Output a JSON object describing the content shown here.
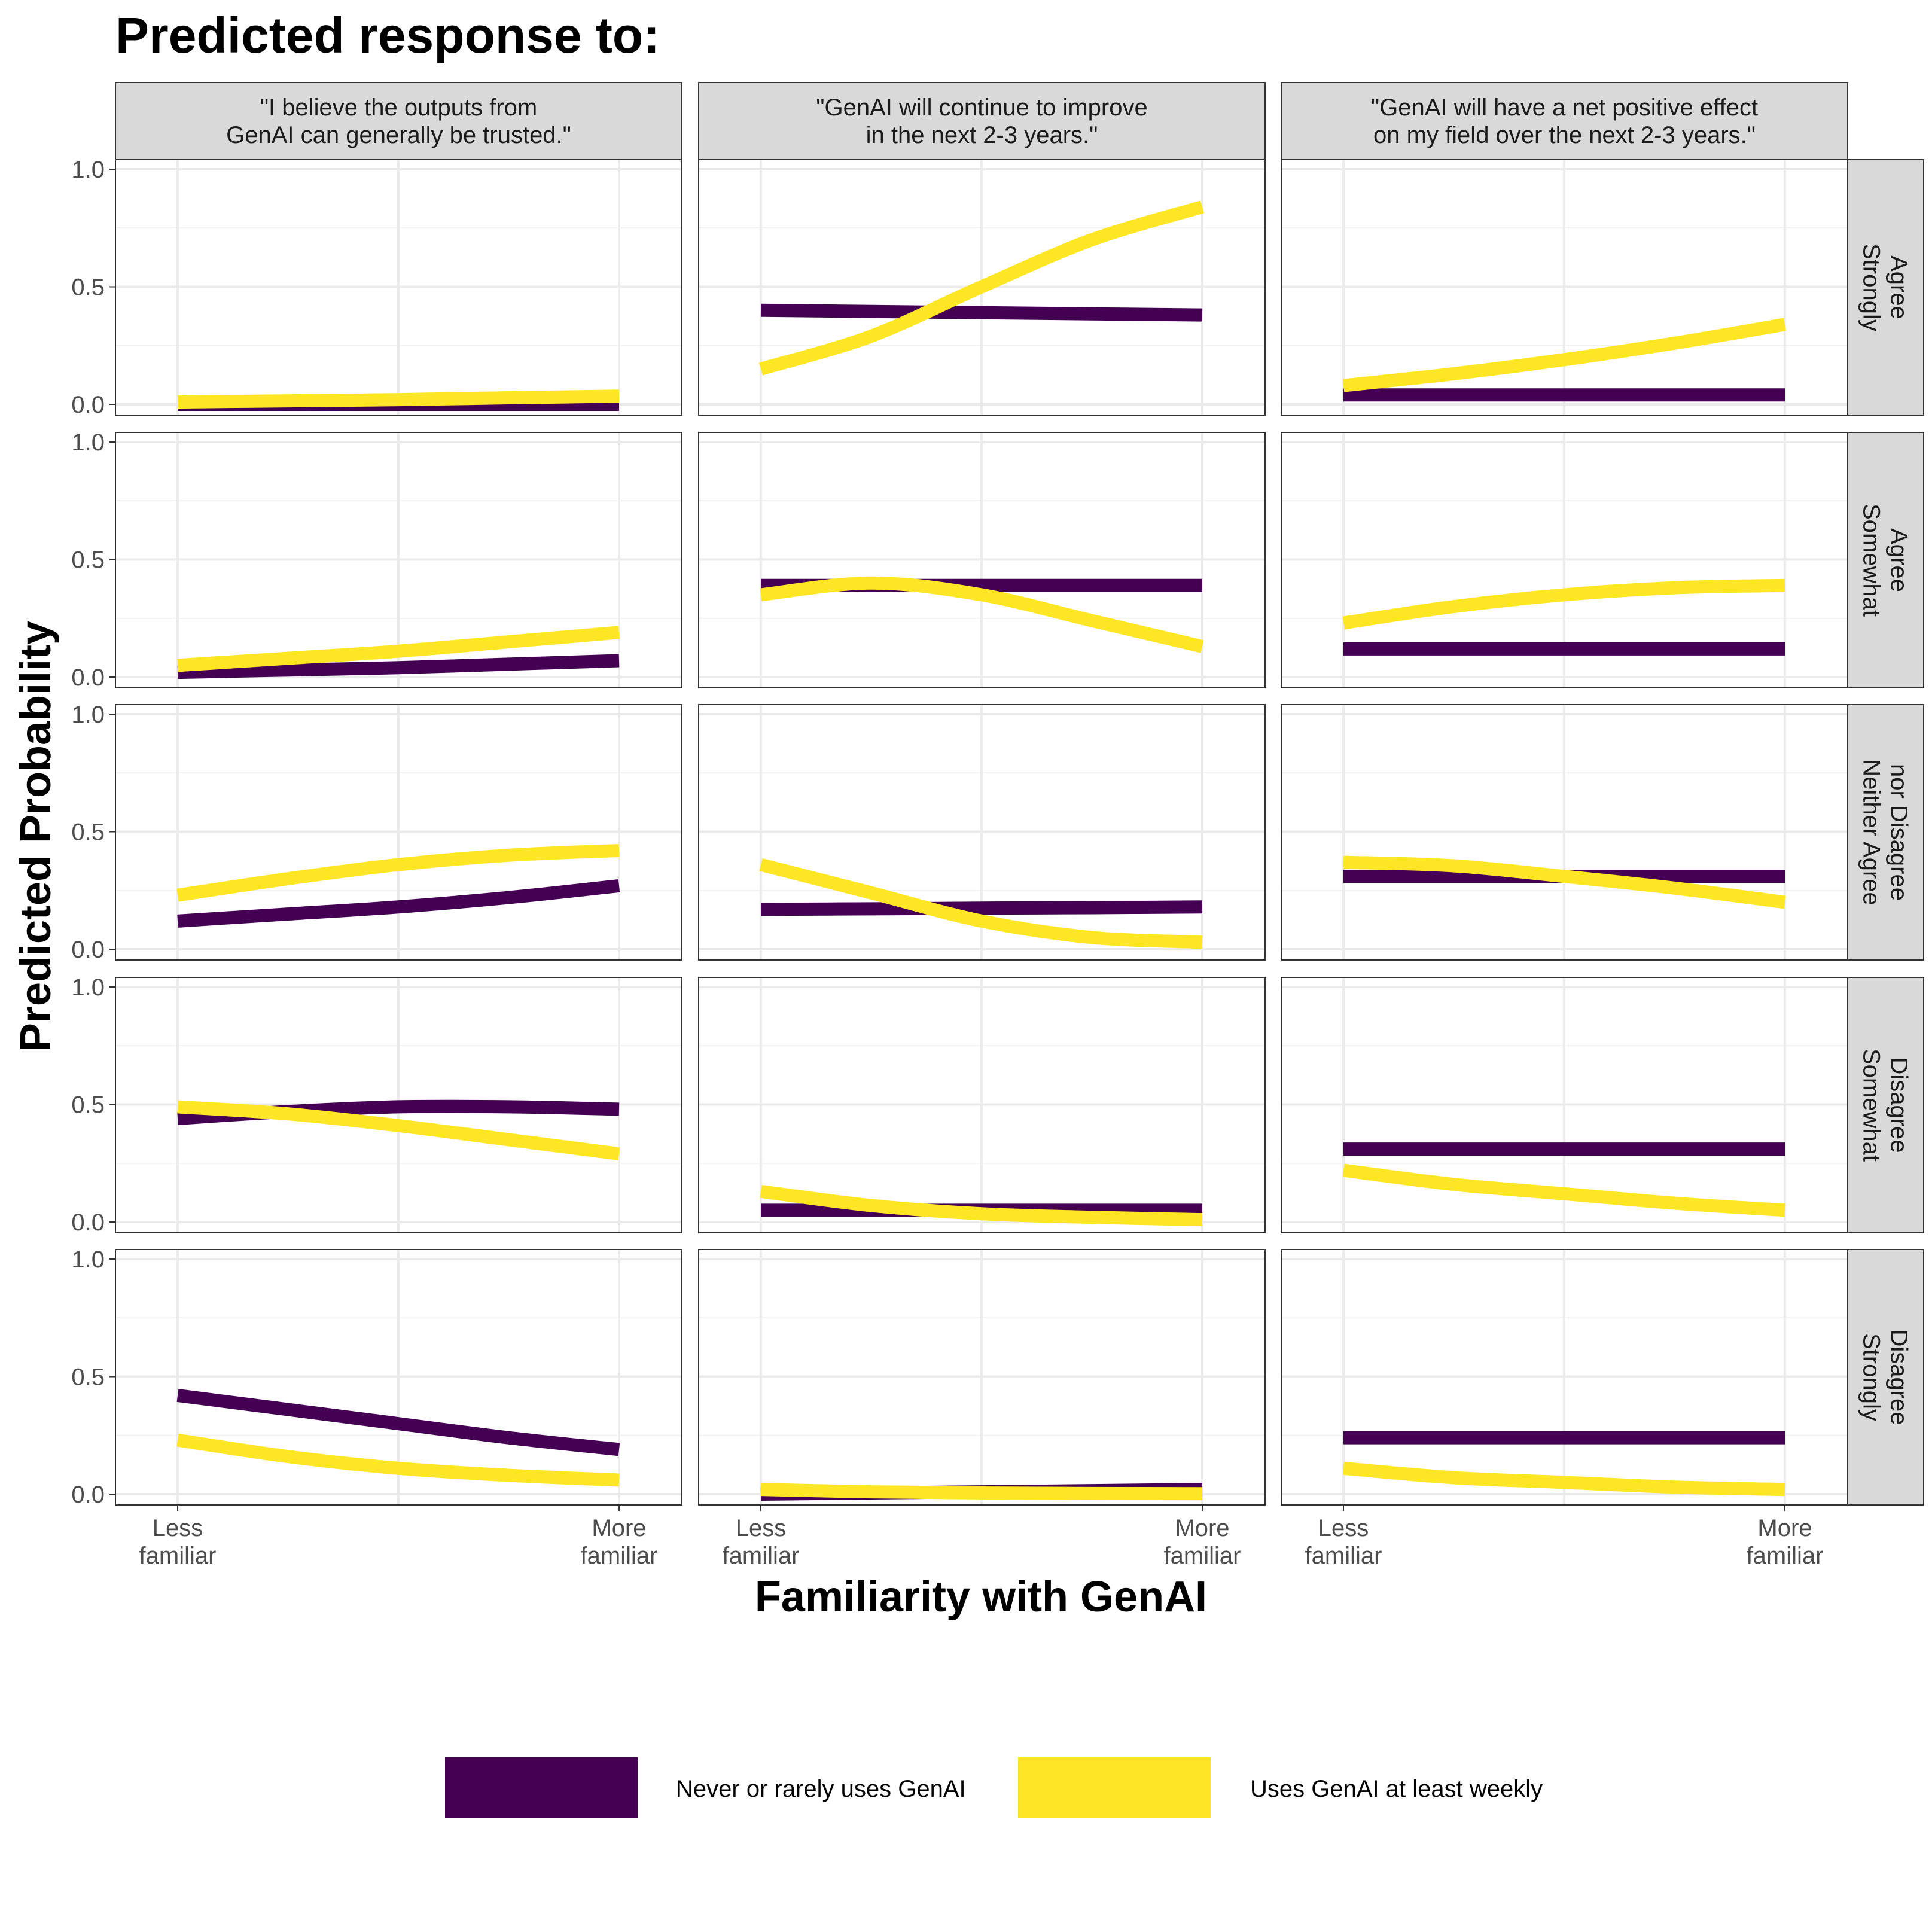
{
  "chart_data": {
    "type": "line",
    "title": "Predicted response to:",
    "xlabel": "Familiarity with GenAI",
    "ylabel": "Predicted Probability",
    "x_tick_labels": [
      [
        "Less",
        "familiar"
      ],
      [
        "More",
        "familiar"
      ]
    ],
    "x_range": [
      0,
      1
    ],
    "ylim": [
      0,
      1
    ],
    "y_ticks": [
      "0.0",
      "0.5",
      "1.0"
    ],
    "grid": true,
    "legend_position": "bottom",
    "columns": [
      [
        "\"I believe the outputs from",
        "GenAI can generally be trusted.\""
      ],
      [
        "\"GenAI will continue to improve",
        "in the next 2-3 years.\""
      ],
      [
        "\"GenAI will have a net positive effect",
        "on my field over the next 2-3 years.\""
      ]
    ],
    "rows": [
      [
        "Strongly",
        "Agree"
      ],
      [
        "Somewhat",
        "Agree"
      ],
      [
        "Neither Agree",
        "nor Disagree"
      ],
      [
        "Somewhat",
        "Disagree"
      ],
      [
        "Strongly",
        "Disagree"
      ]
    ],
    "x": [
      0,
      0.25,
      0.5,
      0.75,
      1
    ],
    "series": [
      {
        "name": "Never or rarely uses GenAI",
        "color": "#440154",
        "panels": [
          [
            [
              0.0,
              0.0,
              0.0,
              0.0,
              0.0
            ],
            [
              0.4,
              0.395,
              0.39,
              0.385,
              0.38
            ],
            [
              0.04,
              0.04,
              0.04,
              0.04,
              0.04
            ]
          ],
          [
            [
              0.02,
              0.03,
              0.04,
              0.055,
              0.07
            ],
            [
              0.39,
              0.39,
              0.39,
              0.39,
              0.39
            ],
            [
              0.12,
              0.12,
              0.12,
              0.12,
              0.12
            ]
          ],
          [
            [
              0.12,
              0.15,
              0.18,
              0.22,
              0.27
            ],
            [
              0.17,
              0.172,
              0.175,
              0.177,
              0.18
            ],
            [
              0.31,
              0.31,
              0.31,
              0.31,
              0.31
            ]
          ],
          [
            [
              0.44,
              0.47,
              0.49,
              0.49,
              0.48
            ],
            [
              0.05,
              0.05,
              0.05,
              0.05,
              0.05
            ],
            [
              0.31,
              0.31,
              0.31,
              0.31,
              0.31
            ]
          ],
          [
            [
              0.42,
              0.36,
              0.3,
              0.24,
              0.19
            ],
            [
              0.0,
              0.005,
              0.01,
              0.015,
              0.02
            ],
            [
              0.24,
              0.24,
              0.24,
              0.24,
              0.24
            ]
          ]
        ]
      },
      {
        "name": "Uses GenAI at least weekly",
        "color": "#FDE725",
        "panels": [
          [
            [
              0.01,
              0.015,
              0.02,
              0.028,
              0.035
            ],
            [
              0.15,
              0.29,
              0.5,
              0.7,
              0.84
            ],
            [
              0.08,
              0.13,
              0.19,
              0.26,
              0.34
            ]
          ],
          [
            [
              0.05,
              0.08,
              0.11,
              0.15,
              0.19
            ],
            [
              0.35,
              0.4,
              0.35,
              0.24,
              0.13
            ],
            [
              0.23,
              0.3,
              0.35,
              0.38,
              0.39
            ]
          ],
          [
            [
              0.23,
              0.3,
              0.36,
              0.4,
              0.42
            ],
            [
              0.36,
              0.24,
              0.12,
              0.05,
              0.03
            ],
            [
              0.37,
              0.355,
              0.31,
              0.26,
              0.2
            ]
          ],
          [
            [
              0.49,
              0.46,
              0.41,
              0.35,
              0.29
            ],
            [
              0.13,
              0.07,
              0.035,
              0.02,
              0.01
            ],
            [
              0.22,
              0.16,
              0.12,
              0.08,
              0.05
            ]
          ],
          [
            [
              0.23,
              0.16,
              0.11,
              0.08,
              0.06
            ],
            [
              0.02,
              0.01,
              0.005,
              0.003,
              0.002
            ],
            [
              0.11,
              0.07,
              0.05,
              0.03,
              0.02
            ]
          ]
        ]
      }
    ]
  },
  "legend": {
    "items": [
      {
        "label": "Never or rarely uses GenAI",
        "color": "#440154"
      },
      {
        "label": "Uses GenAI at least weekly",
        "color": "#FDE725"
      }
    ]
  }
}
